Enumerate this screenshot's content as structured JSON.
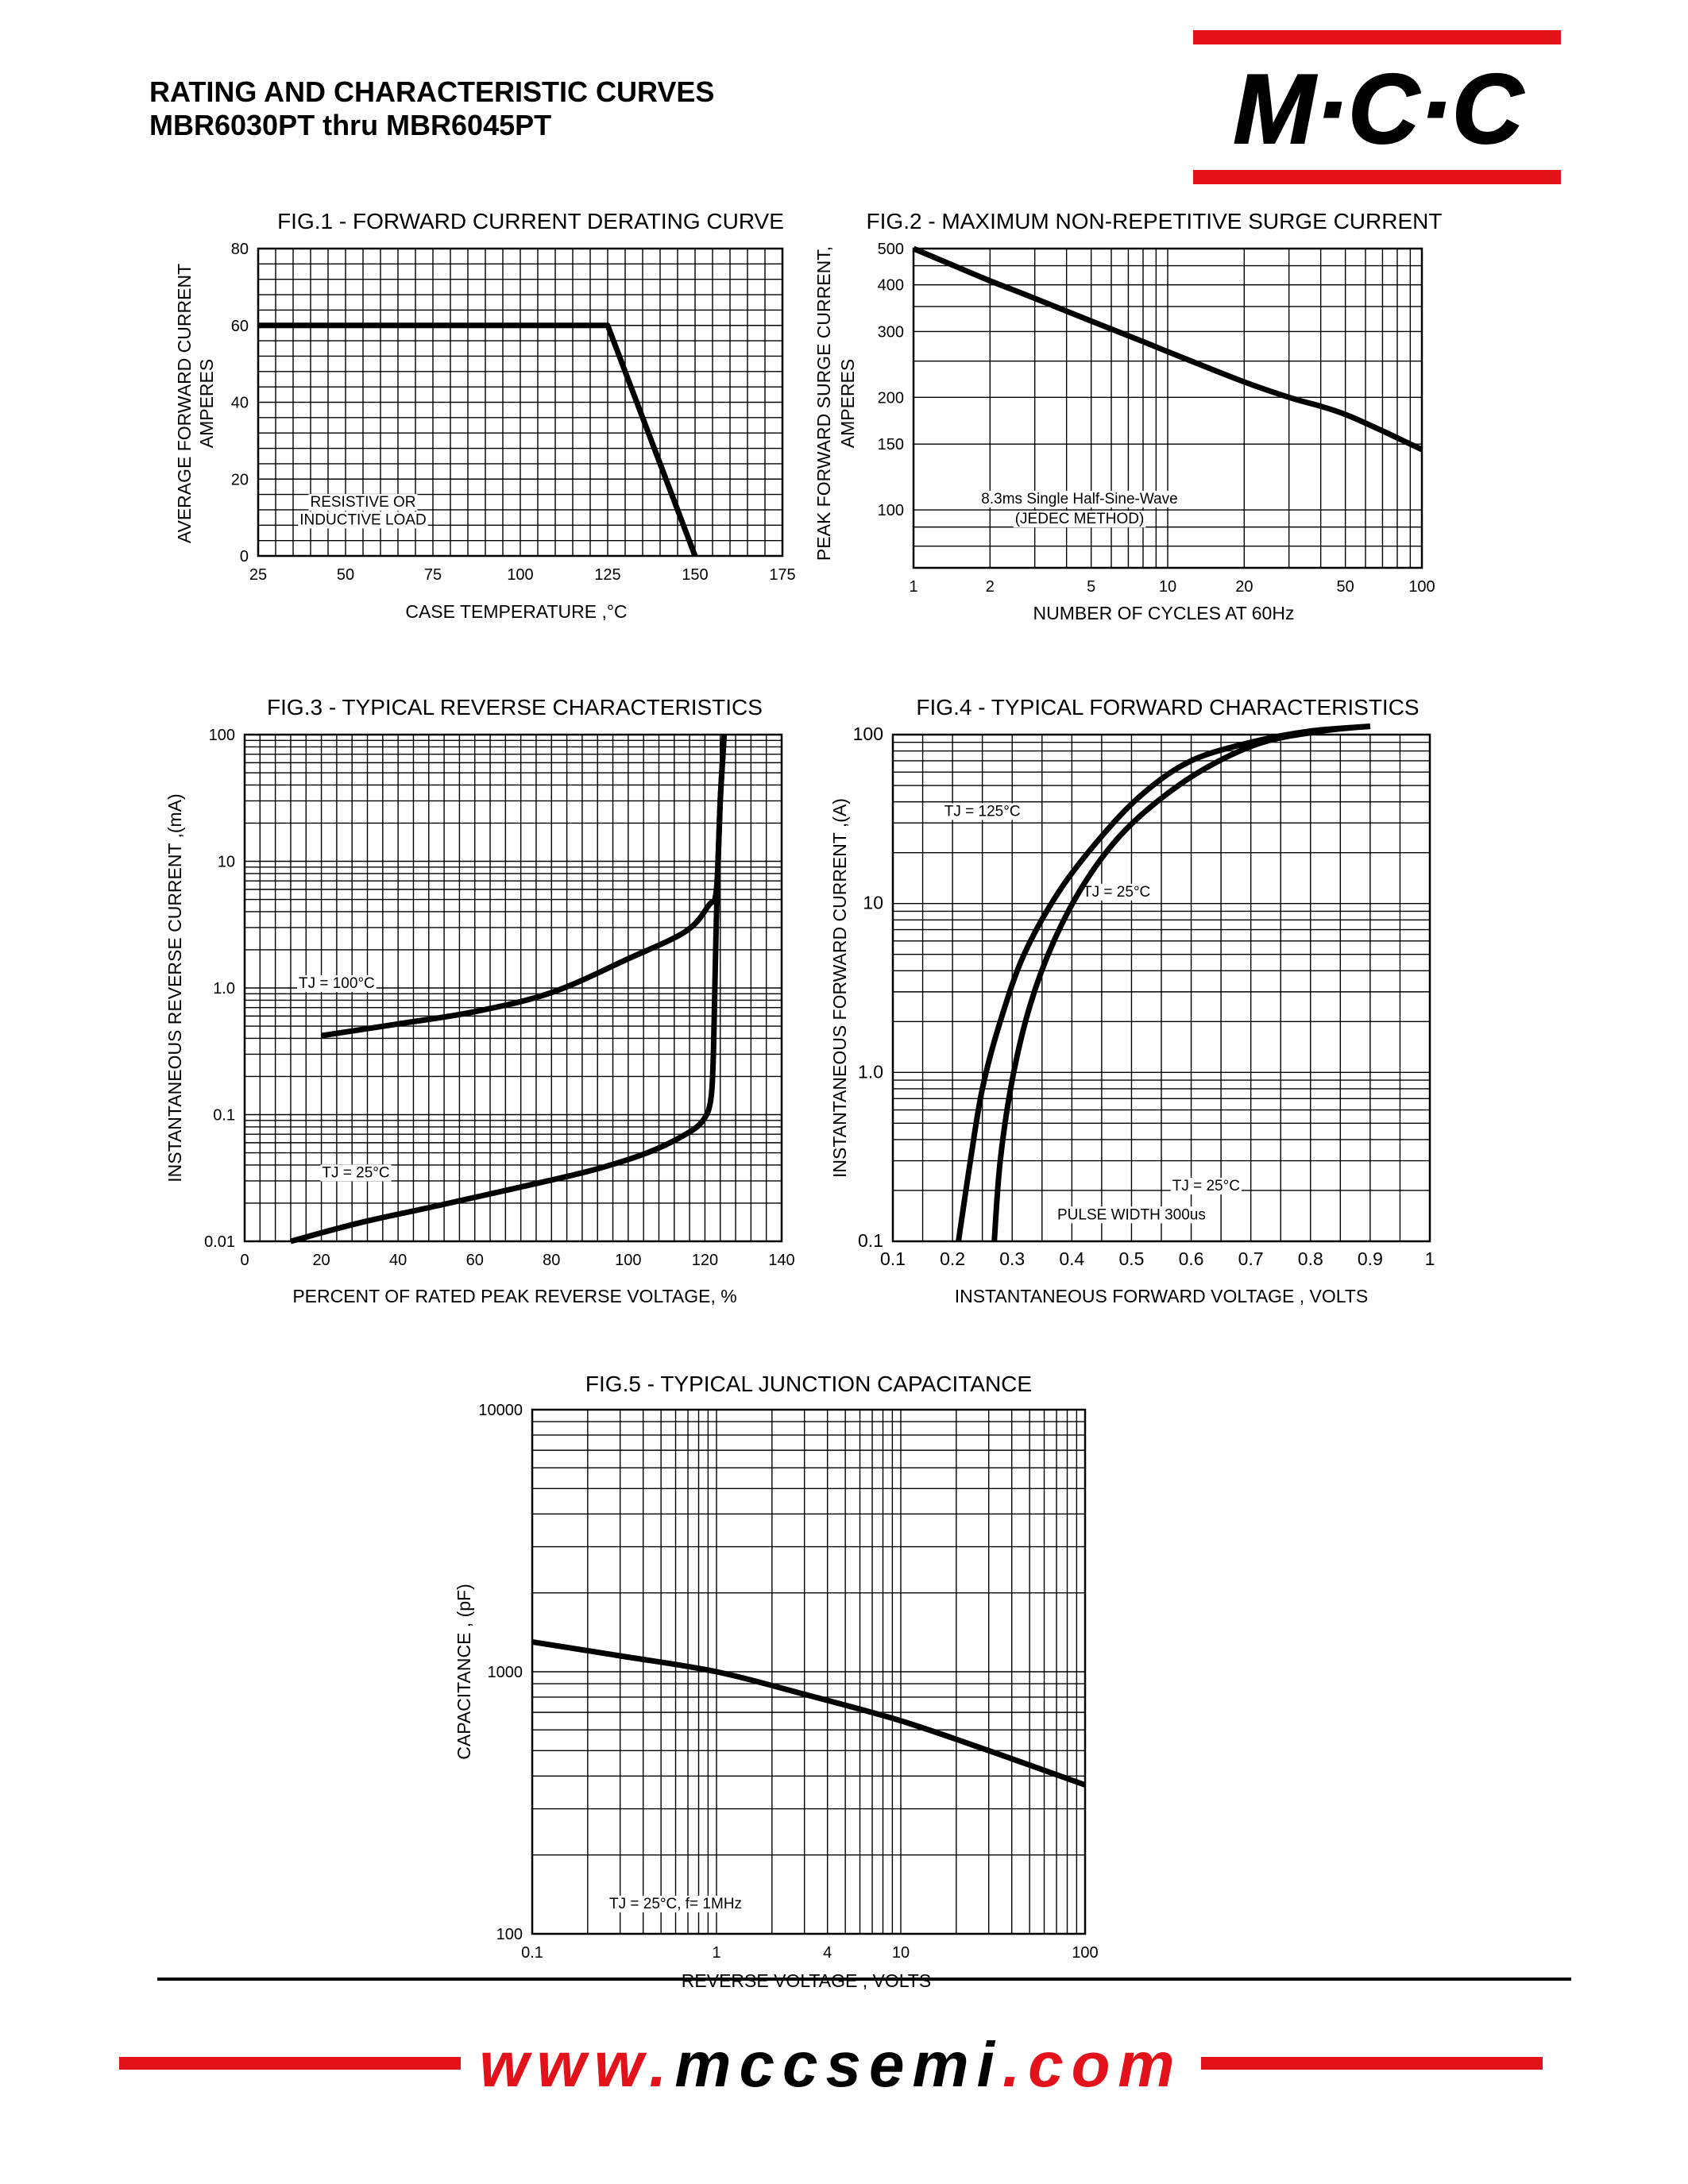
{
  "header": {
    "title_line1": "RATING AND CHARACTERISTIC CURVES",
    "title_line2": "MBR6030PT thru MBR6045PT",
    "logo_text": "M·C·C"
  },
  "footer": {
    "url_prefix": "www.",
    "url_brand": "mccsemi",
    "url_suffix": ".com"
  },
  "colors": {
    "brand_red": "#e3121a",
    "ink": "#000000"
  },
  "chart_data": [
    {
      "id": "fig1",
      "type": "line",
      "title": "FIG.1 - FORWARD CURRENT DERATING CURVE",
      "xlabel": "CASE TEMPERATURE ,°C",
      "ylabel_lines": [
        "AVERAGE FORWARD CURRENT",
        "AMPERES"
      ],
      "x_scale": "linear",
      "y_scale": "linear",
      "xlim": [
        25,
        175
      ],
      "ylim": [
        0,
        80
      ],
      "xticks": [
        25,
        50,
        75,
        100,
        125,
        150,
        175
      ],
      "yticks": [
        0,
        20,
        40,
        60,
        80
      ],
      "grid": true,
      "annotations": [
        {
          "text": "RESISTIVE OR",
          "x": 55,
          "y": 12.8
        },
        {
          "text": "INDUCTIVE LOAD",
          "x": 55,
          "y": 8.2
        }
      ],
      "series": [
        {
          "x": [
            25,
            125,
            150
          ],
          "y": [
            60,
            60,
            0
          ]
        }
      ]
    },
    {
      "id": "fig2",
      "type": "line",
      "title": "FIG.2 - MAXIMUM NON-REPETITIVE SURGE CURRENT",
      "xlabel": "NUMBER OF CYCLES AT 60Hz",
      "ylabel_lines": [
        "PEAK FORWARD SURGE CURRENT,",
        "AMPERES"
      ],
      "x_scale": "log",
      "y_scale": "log",
      "xlim": [
        1,
        100
      ],
      "ylim": [
        70,
        500
      ],
      "xticks": [
        1,
        2,
        5,
        10,
        20,
        50,
        100
      ],
      "yticks": [
        100,
        150,
        200,
        300,
        400,
        500
      ],
      "grid": true,
      "annotations": [
        {
          "text": "8.3ms Single Half-Sine-Wave",
          "x": 4.5,
          "y": 104
        },
        {
          "text": "(JEDEC METHOD)",
          "x": 4.5,
          "y": 92
        }
      ],
      "series": [
        {
          "x": [
            1,
            1.5,
            2,
            3,
            5,
            8,
            10,
            20,
            30,
            50,
            100
          ],
          "y": [
            500,
            445,
            410,
            368,
            320,
            282,
            265,
            220,
            200,
            180,
            145
          ]
        }
      ]
    },
    {
      "id": "fig3",
      "type": "line",
      "title": "FIG.3 - TYPICAL REVERSE CHARACTERISTICS",
      "xlabel": "PERCENT OF  RATED PEAK REVERSE VOLTAGE, %",
      "ylabel_lines": [
        "INSTANTANEOUS REVERSE CURRENT ,(mA)"
      ],
      "x_scale": "linear",
      "y_scale": "log",
      "xlim": [
        0,
        140
      ],
      "ylim": [
        0.01,
        100
      ],
      "xticks": [
        0,
        20,
        40,
        60,
        80,
        100,
        120,
        140
      ],
      "yticks": [
        0.01,
        0.1,
        1.0,
        10,
        100
      ],
      "ytick_labels": [
        "0.01",
        "0.1",
        "1.0",
        "10",
        "100"
      ],
      "grid": true,
      "annotations": [
        {
          "text": "TJ = 100°C",
          "x": 24,
          "y": 1.0
        },
        {
          "text": "TJ = 25°C",
          "x": 29,
          "y": 0.032
        }
      ],
      "series": [
        {
          "name": "TJ = 100°C",
          "x": [
            20,
            40,
            60,
            80,
            100,
            115,
            121,
            123,
            124,
            125
          ],
          "y": [
            0.42,
            0.52,
            0.65,
            0.92,
            1.7,
            2.8,
            4.5,
            6,
            30,
            100
          ]
        },
        {
          "name": "TJ = 25°C",
          "x": [
            12,
            30,
            50,
            70,
            90,
            105,
            115,
            119.5,
            121.5,
            122.2,
            122.7,
            123.2,
            124,
            125
          ],
          "y": [
            0.01,
            0.014,
            0.019,
            0.026,
            0.036,
            0.05,
            0.07,
            0.09,
            0.13,
            0.3,
            1.5,
            6,
            30,
            100
          ]
        }
      ]
    },
    {
      "id": "fig4",
      "type": "line",
      "title": "FIG.4 - TYPICAL FORWARD CHARACTERISTICS",
      "xlabel": "INSTANTANEOUS FORWARD VOLTAGE , VOLTS",
      "ylabel_lines": [
        "INSTANTANEOUS  FORWARD CURRENT ,(A)"
      ],
      "x_scale": "linear",
      "y_scale": "log",
      "xlim": [
        0.1,
        1.0
      ],
      "ylim": [
        0.1,
        100
      ],
      "xticks": [
        0.1,
        0.2,
        0.3,
        0.4,
        0.5,
        0.6,
        0.7,
        0.8,
        0.9,
        1.0
      ],
      "yticks": [
        0.1,
        1.0,
        10,
        100
      ],
      "ytick_labels": [
        "0.1",
        "1.0",
        "10",
        "100"
      ],
      "grid": true,
      "annotations": [
        {
          "text": "TJ = 125°C",
          "x": 0.25,
          "y": 33
        },
        {
          "text": "TJ = 25°C",
          "x": 0.475,
          "y": 11
        },
        {
          "text": "TJ = 25°C",
          "x": 0.625,
          "y": 0.2
        },
        {
          "text": "PULSE WIDTH 300us",
          "x": 0.5,
          "y": 0.135
        }
      ],
      "series": [
        {
          "name": "TJ = 125°C",
          "x": [
            0.21,
            0.23,
            0.25,
            0.28,
            0.32,
            0.38,
            0.45,
            0.52,
            0.6,
            0.7,
            0.8,
            0.9
          ],
          "y": [
            0.1,
            0.3,
            0.8,
            2,
            5,
            12,
            25,
            45,
            70,
            90,
            105,
            112
          ]
        },
        {
          "name": "TJ = 25°C",
          "x": [
            0.27,
            0.28,
            0.3,
            0.33,
            0.37,
            0.42,
            0.48,
            0.55,
            0.63,
            0.72,
            0.82,
            0.9
          ],
          "y": [
            0.1,
            0.3,
            0.9,
            2.5,
            6,
            13,
            25,
            42,
            65,
            90,
            105,
            112
          ]
        }
      ]
    },
    {
      "id": "fig5",
      "type": "line",
      "title": "FIG.5 - TYPICAL JUNCTION CAPACITANCE",
      "xlabel": "REVERSE VOLTAGE , VOLTS",
      "ylabel_lines": [
        "CAPACITANCE , (pF)"
      ],
      "x_scale": "log",
      "y_scale": "log",
      "xlim": [
        0.1,
        100
      ],
      "ylim": [
        100,
        10000
      ],
      "xticks": [
        0.1,
        1,
        4,
        10,
        100
      ],
      "xtick_labels": [
        "0.1",
        "1",
        "4",
        "10",
        "100"
      ],
      "yticks": [
        100,
        1000,
        10000
      ],
      "grid": true,
      "annotations": [
        {
          "text": "TJ = 25°C,  f= 1MHz",
          "x": 0.6,
          "y": 125
        }
      ],
      "series": [
        {
          "x": [
            0.1,
            0.3,
            1,
            3,
            10,
            30,
            100
          ],
          "y": [
            1300,
            1150,
            1000,
            820,
            650,
            500,
            370
          ]
        }
      ]
    }
  ]
}
